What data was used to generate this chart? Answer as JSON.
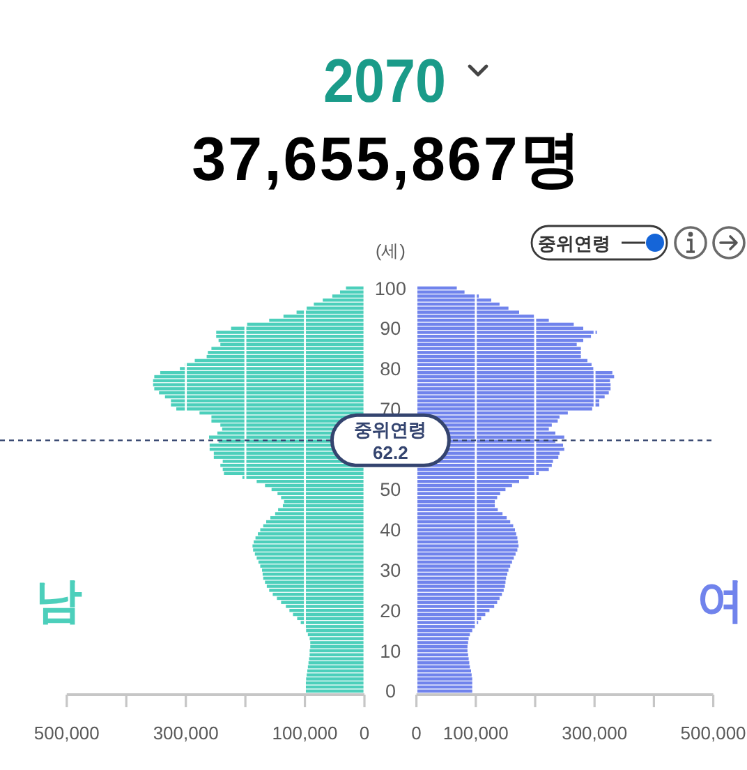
{
  "chart_data": [
    {
      "type": "bar",
      "orientation": "horizontal",
      "title": "2070",
      "subtitle": "37,655,867명",
      "ylabel": "(세)",
      "x": [
        0,
        1,
        2,
        3,
        4,
        5,
        6,
        7,
        8,
        9,
        10,
        11,
        12,
        13,
        14,
        15,
        16,
        17,
        18,
        19,
        20,
        21,
        22,
        23,
        24,
        25,
        26,
        27,
        28,
        29,
        30,
        31,
        32,
        33,
        34,
        35,
        36,
        37,
        38,
        39,
        40,
        41,
        42,
        43,
        44,
        45,
        46,
        47,
        48,
        49,
        50,
        51,
        52,
        53,
        54,
        55,
        56,
        57,
        58,
        59,
        60,
        61,
        62,
        63,
        64,
        65,
        66,
        67,
        68,
        69,
        70,
        71,
        72,
        73,
        74,
        75,
        76,
        77,
        78,
        79,
        80,
        81,
        82,
        83,
        84,
        85,
        86,
        87,
        88,
        89,
        90,
        91,
        92,
        93,
        94,
        95,
        96,
        97,
        98,
        99,
        100
      ],
      "series": [
        {
          "name": "남",
          "color": "#4ccfbb",
          "values": [
            99000,
            99000,
            99000,
            98000,
            97000,
            96000,
            95000,
            94000,
            93000,
            92000,
            92000,
            91000,
            91000,
            92000,
            95000,
            98000,
            101000,
            107000,
            113000,
            120000,
            126000,
            132000,
            140000,
            147000,
            154000,
            160000,
            164000,
            167000,
            170000,
            171000,
            172000,
            175000,
            178000,
            181000,
            184000,
            187000,
            188000,
            186000,
            183000,
            179000,
            175000,
            170000,
            165000,
            158000,
            150000,
            145000,
            137000,
            135000,
            140000,
            146000,
            156000,
            167000,
            181000,
            205000,
            236000,
            238000,
            242000,
            238000,
            253000,
            253000,
            260000,
            260000,
            245000,
            261000,
            247000,
            239000,
            242000,
            257000,
            257000,
            277000,
            316000,
            325000,
            325000,
            335000,
            345000,
            353000,
            355000,
            355000,
            353000,
            343000,
            310000,
            302000,
            285000,
            265000,
            263000,
            257000,
            242000,
            245000,
            249000,
            249000,
            224000,
            197000,
            160000,
            136000,
            114000,
            97000,
            85000,
            70000,
            54000,
            41000,
            31000
          ]
        }
      ],
      "xlim": [
        500000,
        0
      ],
      "xticks": [
        {
          "value": 500000,
          "label": "500,000"
        },
        {
          "value": 400000,
          "label": null
        },
        {
          "value": 300000,
          "label": "300,000"
        },
        {
          "value": 200000,
          "label": null
        },
        {
          "value": 100000,
          "label": "100,000"
        },
        0
      ],
      "ylim": [
        -0.9,
        101.2
      ],
      "yticks": [
        0,
        10,
        20,
        30,
        40,
        50,
        70,
        80,
        90,
        100
      ],
      "grid": "x",
      "ref_lines": [
        {
          "axis": "y",
          "value": 62.2,
          "label": "중위연령 62.2",
          "color": "#34446f",
          "line_style": "dashed"
        }
      ],
      "annotations": [
        "중위연령"
      ]
    },
    {
      "type": "bar",
      "orientation": "horizontal",
      "x": [
        0,
        1,
        2,
        3,
        4,
        5,
        6,
        7,
        8,
        9,
        10,
        11,
        12,
        13,
        14,
        15,
        16,
        17,
        18,
        19,
        20,
        21,
        22,
        23,
        24,
        25,
        26,
        27,
        28,
        29,
        30,
        31,
        32,
        33,
        34,
        35,
        36,
        37,
        38,
        39,
        40,
        41,
        42,
        43,
        44,
        45,
        46,
        47,
        48,
        49,
        50,
        51,
        52,
        53,
        54,
        55,
        56,
        57,
        58,
        59,
        60,
        61,
        62,
        63,
        64,
        65,
        66,
        67,
        68,
        69,
        70,
        71,
        72,
        73,
        74,
        75,
        76,
        77,
        78,
        79,
        80,
        81,
        82,
        83,
        84,
        85,
        86,
        87,
        88,
        89,
        90,
        91,
        92,
        93,
        94,
        95,
        96,
        97,
        98,
        99,
        100
      ],
      "series": [
        {
          "name": "여",
          "color": "#7083ec",
          "values": [
            94000,
            94000,
            94000,
            94000,
            93000,
            92000,
            90000,
            89000,
            88000,
            87000,
            86000,
            86000,
            87000,
            88000,
            90000,
            94000,
            99000,
            104000,
            109000,
            116000,
            123000,
            131000,
            136000,
            140000,
            144000,
            147000,
            149000,
            150000,
            151000,
            153000,
            155000,
            158000,
            161000,
            164000,
            167000,
            170000,
            172000,
            171000,
            170000,
            168000,
            166000,
            163000,
            158000,
            152000,
            145000,
            137000,
            132000,
            132000,
            136000,
            141000,
            150000,
            161000,
            173000,
            189000,
            206000,
            223000,
            228000,
            230000,
            239000,
            241000,
            249000,
            247000,
            234000,
            249000,
            234000,
            223000,
            228000,
            238000,
            241000,
            255000,
            296000,
            308000,
            308000,
            317000,
            324000,
            327000,
            327000,
            326000,
            333000,
            330000,
            298000,
            295000,
            288000,
            277000,
            277000,
            277000,
            270000,
            281000,
            294000,
            304000,
            281000,
            265000,
            223000,
            198000,
            173000,
            155000,
            140000,
            126000,
            105000,
            81000,
            68000
          ]
        }
      ],
      "xlim": [
        0,
        500000
      ],
      "xticks": [
        0,
        {
          "value": 100000,
          "label": "100,000"
        },
        {
          "value": 200000,
          "label": null
        },
        {
          "value": 300000,
          "label": "300,000"
        },
        {
          "value": 400000,
          "label": null
        },
        {
          "value": 500000,
          "label": "500,000"
        }
      ],
      "ylim": [
        -0.9,
        101.2
      ],
      "grid": "x",
      "tick_labels": "x"
    }
  ]
}
